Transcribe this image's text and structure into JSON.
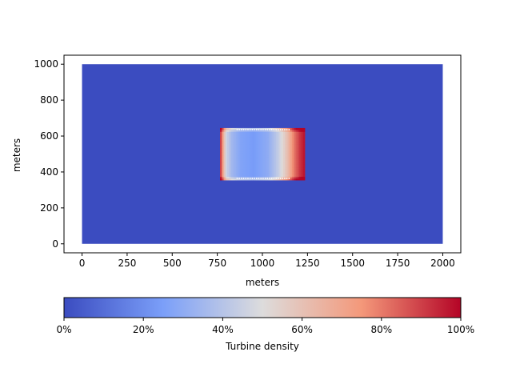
{
  "chart_data": {
    "type": "heatmap",
    "title": "",
    "xlabel": "meters",
    "ylabel": "meters",
    "domain": {
      "x": [
        0,
        2000
      ],
      "y": [
        0,
        1000
      ]
    },
    "xlim": [
      -100,
      2100
    ],
    "ylim": [
      -50,
      1050
    ],
    "x_ticks": [
      0,
      250,
      500,
      750,
      1000,
      1250,
      1500,
      1750,
      2000
    ],
    "y_ticks": [
      0,
      200,
      400,
      600,
      800,
      1000
    ],
    "colormap": "coolwarm",
    "background_value_percent": 0,
    "turbine_region": {
      "x": [
        765,
        1235
      ],
      "y": [
        355,
        645
      ]
    },
    "density_profile_x": [
      {
        "x": 765,
        "value": 97
      },
      {
        "x": 785,
        "value": 66
      },
      {
        "x": 800,
        "value": 46
      },
      {
        "x": 830,
        "value": 35
      },
      {
        "x": 880,
        "value": 27
      },
      {
        "x": 950,
        "value": 24
      },
      {
        "x": 1030,
        "value": 30
      },
      {
        "x": 1090,
        "value": 44
      },
      {
        "x": 1140,
        "value": 62
      },
      {
        "x": 1180,
        "value": 82
      },
      {
        "x": 1210,
        "value": 92
      },
      {
        "x": 1235,
        "value": 98
      }
    ],
    "colorbar": {
      "label": "Turbine density",
      "range": [
        0,
        100
      ],
      "ticks": [
        "0%",
        "20%",
        "40%",
        "60%",
        "80%",
        "100%"
      ],
      "orientation": "horizontal"
    }
  }
}
